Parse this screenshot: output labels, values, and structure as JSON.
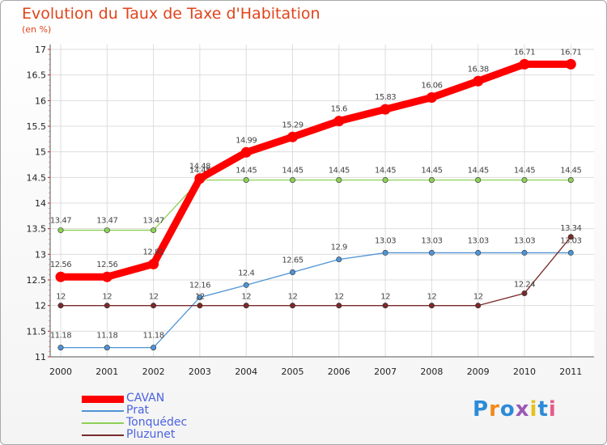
{
  "chart_data": {
    "type": "line",
    "title": "Evolution du Taux de Taxe d'Habitation",
    "subtitle": "(en %)",
    "categories": [
      "2000",
      "2001",
      "2002",
      "2003",
      "2004",
      "2005",
      "2006",
      "2007",
      "2008",
      "2009",
      "2010",
      "2011"
    ],
    "ylim": [
      11,
      17
    ],
    "yticks": [
      "11",
      "11.5",
      "12",
      "12.5",
      "13",
      "13.5",
      "14",
      "14.5",
      "15",
      "15.5",
      "16",
      "16.5",
      "17"
    ],
    "grid": true,
    "legend_position": "bottom-left",
    "series": [
      {
        "name": "CAVAN",
        "color": "#ff0000",
        "values": [
          12.56,
          12.56,
          12.81,
          14.48,
          14.99,
          15.29,
          15.6,
          15.83,
          16.06,
          16.38,
          16.71,
          16.71
        ],
        "labels": [
          "12.56",
          "12.56",
          "12.81",
          "14.48",
          "14.99",
          "15.29",
          "15.6",
          "15.83",
          "16.06",
          "16.38",
          "16.71",
          "16.71"
        ]
      },
      {
        "name": "Prat",
        "color": "#4f94d4",
        "values": [
          11.18,
          11.18,
          11.18,
          12.16,
          12.4,
          12.65,
          12.9,
          13.03,
          13.03,
          13.03,
          13.03,
          13.03
        ],
        "labels": [
          "11.18",
          "11.18",
          "11.18",
          "12.16",
          "12.4",
          "12.65",
          "12.9",
          "13.03",
          "13.03",
          "13.03",
          "13.03",
          "13.03"
        ]
      },
      {
        "name": "Tonquédec",
        "color": "#8ed156",
        "values": [
          13.47,
          13.47,
          13.47,
          14.45,
          14.45,
          14.45,
          14.45,
          14.45,
          14.45,
          14.45,
          14.45,
          14.45
        ],
        "labels": [
          "13.47",
          "13.47",
          "13.47",
          "14.45",
          "14.45",
          "14.45",
          "14.45",
          "14.45",
          "14.45",
          "14.45",
          "14.45",
          "14.45"
        ]
      },
      {
        "name": "Pluzunet",
        "color": "#7a2a2a",
        "values": [
          12,
          12,
          12,
          12,
          12,
          12,
          12,
          12,
          12,
          12,
          12.24,
          13.34
        ],
        "labels": [
          "12",
          "12",
          "12",
          "12",
          "12",
          "12",
          "12",
          "12",
          "12",
          "12",
          "12.24",
          "13.34"
        ]
      }
    ]
  },
  "logo": {
    "text": "Proxiti",
    "letter_colors": [
      "#2d8bd8",
      "#f08a1c",
      "#2d8bd8",
      "#9b59b6",
      "#e6c21a",
      "#2d8bd8",
      "#e65a8a"
    ]
  }
}
